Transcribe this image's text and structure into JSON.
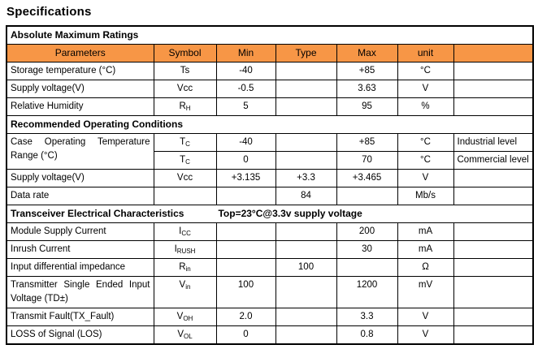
{
  "page": {
    "title": "Specifications"
  },
  "colors": {
    "header_bg": "#F79646",
    "border": "#000000",
    "text": "#000000"
  },
  "table": {
    "columns": [
      "Parameters",
      "Symbol",
      "Min",
      "Type",
      "Max",
      "unit",
      ""
    ],
    "sections": [
      {
        "title": "Absolute Maximum Ratings",
        "condition": "",
        "rows": [
          {
            "cells": {
              "param": "Storage temperature (°C)",
              "symbol_base": "Ts",
              "symbol_sub": "",
              "min": "-40",
              "type": "",
              "max": "+85",
              "unit": "°C",
              "note": ""
            }
          },
          {
            "cells": {
              "param": "Supply voltage(V)",
              "symbol_base": "Vcc",
              "symbol_sub": "",
              "min": "-0.5",
              "type": "",
              "max": "3.63",
              "unit": "V",
              "note": ""
            }
          },
          {
            "cells": {
              "param": "Relative Humidity",
              "symbol_base": "R",
              "symbol_sub": "H",
              "min": "5",
              "type": "",
              "max": "95",
              "unit": "%",
              "note": ""
            }
          }
        ]
      },
      {
        "title": "Recommended Operating Conditions",
        "condition": "",
        "rows": [
          {
            "param_rowspan": 2,
            "cells": {
              "param": "Case Operating Temperature Range (°C)",
              "symbol_base": "T",
              "symbol_sub": "C",
              "min": "-40",
              "type": "",
              "max": "+85",
              "unit": "°C",
              "note": "Industrial level"
            }
          },
          {
            "param_skip": true,
            "cells": {
              "param": "",
              "symbol_base": "T",
              "symbol_sub": "C",
              "min": "0",
              "type": "",
              "max": "70",
              "unit": "°C",
              "note": "Commercial level"
            }
          },
          {
            "cells": {
              "param": "Supply voltage(V)",
              "symbol_base": "Vcc",
              "symbol_sub": "",
              "min": "+3.135",
              "type": "+3.3",
              "max": "+3.465",
              "unit": "V",
              "note": ""
            }
          },
          {
            "cells": {
              "param": "Data rate",
              "symbol_base": "",
              "symbol_sub": "",
              "min": "",
              "type": "84",
              "max": "",
              "unit": "Mb/s",
              "note": ""
            }
          }
        ]
      },
      {
        "title": "Transceiver Electrical Characteristics",
        "condition": "Top=23°C@3.3v supply voltage",
        "rows": [
          {
            "cells": {
              "param": "Module Supply Current",
              "symbol_base": "I",
              "symbol_sub": "CC",
              "min": "",
              "type": "",
              "max": "200",
              "unit": "mA",
              "note": ""
            }
          },
          {
            "cells": {
              "param": "Inrush Current",
              "symbol_base": "I",
              "symbol_sub": "RUSH",
              "min": "",
              "type": "",
              "max": "30",
              "unit": "mA",
              "note": ""
            }
          },
          {
            "cells": {
              "param": "Input differential impedance",
              "symbol_base": "R",
              "symbol_sub": "in",
              "min": "",
              "type": "100",
              "max": "",
              "unit": "Ω",
              "note": ""
            }
          },
          {
            "cells": {
              "param": "Transmitter Single Ended Input Voltage (TD±)",
              "symbol_base": "V",
              "symbol_sub": "in",
              "min": "100",
              "type": "",
              "max": "1200",
              "unit": "mV",
              "note": ""
            }
          },
          {
            "cells": {
              "param": "Transmit Fault(TX_Fault)",
              "symbol_base": "V",
              "symbol_sub": "OH",
              "min": "2.0",
              "type": "",
              "max": "3.3",
              "unit": "V",
              "note": ""
            }
          },
          {
            "cells": {
              "param": "LOSS of Signal (LOS)",
              "symbol_base": "V",
              "symbol_sub": "OL",
              "min": "0",
              "type": "",
              "max": "0.8",
              "unit": "V",
              "note": ""
            }
          }
        ]
      }
    ]
  }
}
